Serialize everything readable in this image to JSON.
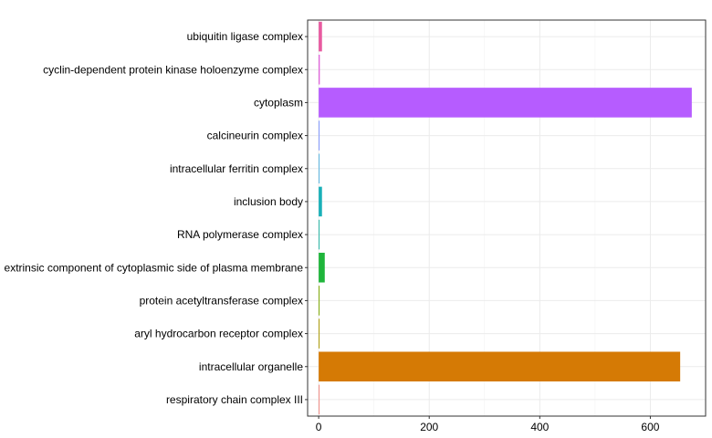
{
  "chart_data": {
    "type": "bar",
    "orientation": "horizontal",
    "categories": [
      "ubiquitin ligase complex",
      "cyclin-dependent protein kinase holoenzyme complex",
      "cytoplasm",
      "calcineurin complex",
      "intracellular ferritin complex",
      "inclusion body",
      "RNA polymerase complex",
      "extrinsic component of cytoplasmic side of plasma membrane",
      "protein acetyltransferase complex",
      "aryl hydrocarbon receptor complex",
      "intracellular organelle",
      "respiratory chain complex III"
    ],
    "values": [
      6,
      2,
      675,
      1,
      1,
      6,
      1,
      11,
      1,
      1,
      654,
      1
    ],
    "colors": [
      "#e85aa0",
      "#de55d9",
      "#b65cff",
      "#7f96ff",
      "#57b4e0",
      "#19b0b8",
      "#25b7a5",
      "#1fb53b",
      "#7ea800",
      "#ab9a00",
      "#d57a05",
      "#f08982"
    ],
    "x_ticks": [
      0,
      200,
      400,
      600
    ],
    "xlim": [
      -20,
      700
    ],
    "xlabel": "",
    "ylabel": "",
    "title": "",
    "grid": true,
    "legend": "none"
  }
}
